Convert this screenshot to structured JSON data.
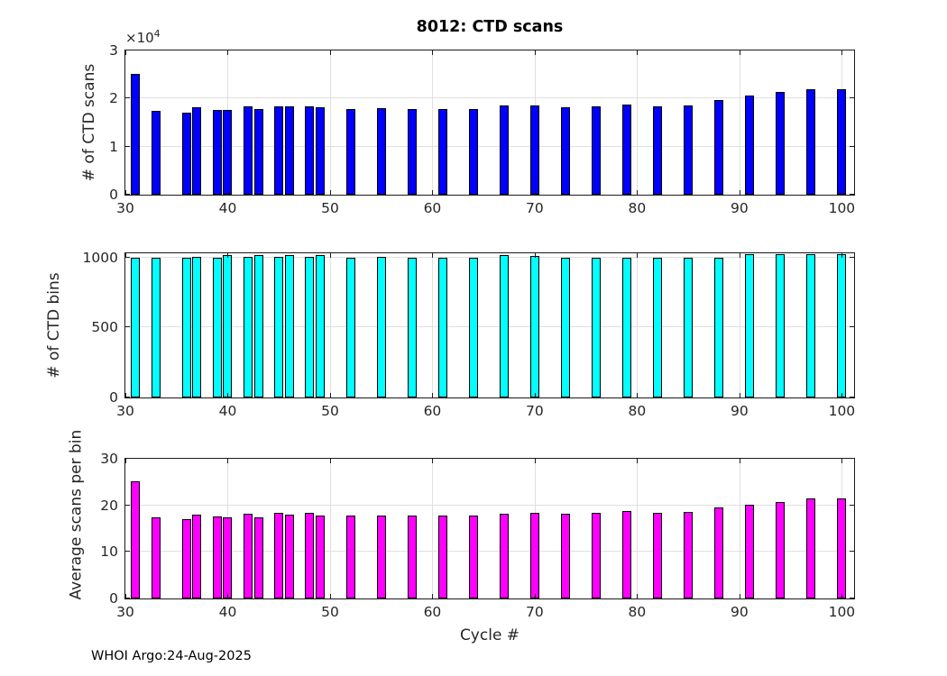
{
  "figure": {
    "title": "8012: CTD scans",
    "xlabel": "Cycle #",
    "footer": "WHOI Argo:24-Aug-2025",
    "background_color": "#FFFFFF",
    "grid_color": "#E0E0E0",
    "axis_color": "#1A1A1A",
    "text_color": "#262626"
  },
  "x_axis": {
    "xlim": [
      30,
      101.2
    ],
    "ticks": [
      30,
      40,
      50,
      60,
      70,
      80,
      90,
      100
    ],
    "tick_labels": [
      "30",
      "40",
      "50",
      "60",
      "70",
      "80",
      "90",
      "100"
    ]
  },
  "chart_data": [
    {
      "type": "bar",
      "title": "8012: CTD scans",
      "ylabel": "# of CTD scans",
      "y_offset": {
        "base": "×10",
        "exp": "4"
      },
      "bar_color": "#0000FF",
      "ylim": [
        0,
        30000
      ],
      "yticks": [
        0,
        10000,
        20000,
        30000
      ],
      "ytick_labels": [
        "0",
        "1",
        "2",
        "3"
      ],
      "grid": true,
      "x": [
        31,
        33,
        36,
        37,
        39,
        40,
        42,
        43,
        45,
        46,
        48,
        49,
        52,
        55,
        58,
        61,
        64,
        67,
        70,
        73,
        76,
        79,
        82,
        85,
        88,
        91,
        94,
        97,
        100
      ],
      "values": [
        25200,
        17450,
        17100,
        18100,
        17700,
        17700,
        18300,
        17900,
        18400,
        18400,
        18400,
        18100,
        17800,
        17950,
        17800,
        17800,
        17850,
        18500,
        18500,
        18150,
        18350,
        18700,
        18350,
        18500,
        19600,
        20600,
        21300,
        21900,
        22000
      ]
    },
    {
      "type": "bar",
      "ylabel": "# of CTD bins",
      "bar_color": "#00FFFF",
      "ylim": [
        0,
        1030
      ],
      "yticks": [
        0,
        500,
        1000
      ],
      "ytick_labels": [
        "0",
        "500",
        "1000"
      ],
      "grid": true,
      "x": [
        31,
        33,
        36,
        37,
        39,
        40,
        42,
        43,
        45,
        46,
        48,
        49,
        52,
        55,
        58,
        61,
        64,
        67,
        70,
        73,
        76,
        79,
        82,
        85,
        88,
        91,
        94,
        97,
        100
      ],
      "values": [
        1000,
        1000,
        1000,
        1005,
        1000,
        1020,
        1005,
        1020,
        1005,
        1020,
        1005,
        1015,
        1000,
        1005,
        1000,
        1000,
        1000,
        1020,
        1010,
        1000,
        1000,
        1000,
        1000,
        1000,
        1000,
        1025,
        1025,
        1025,
        1025
      ]
    },
    {
      "type": "bar",
      "ylabel": "Average scans per bin",
      "xlabel": "Cycle #",
      "bar_color": "#FF00FF",
      "ylim": [
        0,
        30
      ],
      "yticks": [
        0,
        10,
        20,
        30
      ],
      "ytick_labels": [
        "0",
        "10",
        "20",
        "30"
      ],
      "grid": true,
      "x": [
        31,
        33,
        36,
        37,
        39,
        40,
        42,
        43,
        45,
        46,
        48,
        49,
        52,
        55,
        58,
        61,
        64,
        67,
        70,
        73,
        76,
        79,
        82,
        85,
        88,
        91,
        94,
        97,
        100
      ],
      "values": [
        25.2,
        17.5,
        17.1,
        18.0,
        17.7,
        17.4,
        18.2,
        17.5,
        18.3,
        18.0,
        18.3,
        17.8,
        17.8,
        17.9,
        17.8,
        17.8,
        17.9,
        18.1,
        18.3,
        18.2,
        18.4,
        18.7,
        18.4,
        18.5,
        19.6,
        20.1,
        20.8,
        21.4,
        21.5
      ]
    }
  ]
}
